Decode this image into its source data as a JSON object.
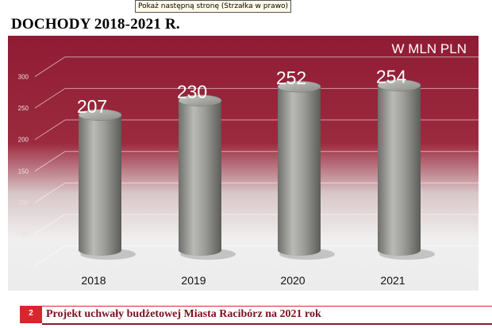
{
  "tooltip": "Pokaż następną stronę (Strzałka w prawo)",
  "slide_title": "DOCHODY 2018-2021 R.",
  "unit_label": "W MLN PLN",
  "footer": {
    "page_number": "2",
    "text": "Projekt uchwały budżetowej Miasta Racibórz na 2021 rok"
  },
  "colors": {
    "background_top": "#8f1c34",
    "background_bottom": "#f2f2f2",
    "cylinder": "#a8a8a4",
    "accent": "#d8262e"
  },
  "chart_data": {
    "type": "bar",
    "style": "3d-cylinder",
    "categories": [
      "2018",
      "2019",
      "2020",
      "2021"
    ],
    "values": [
      207,
      230,
      252,
      254
    ],
    "data_labels": [
      "207",
      "230",
      "252",
      "254"
    ],
    "y_ticks": [
      "300",
      "250",
      "200",
      "150",
      "100",
      "50"
    ],
    "ylim": [
      0,
      300
    ],
    "grid": true,
    "title": "",
    "xlabel": "",
    "ylabel": ""
  }
}
